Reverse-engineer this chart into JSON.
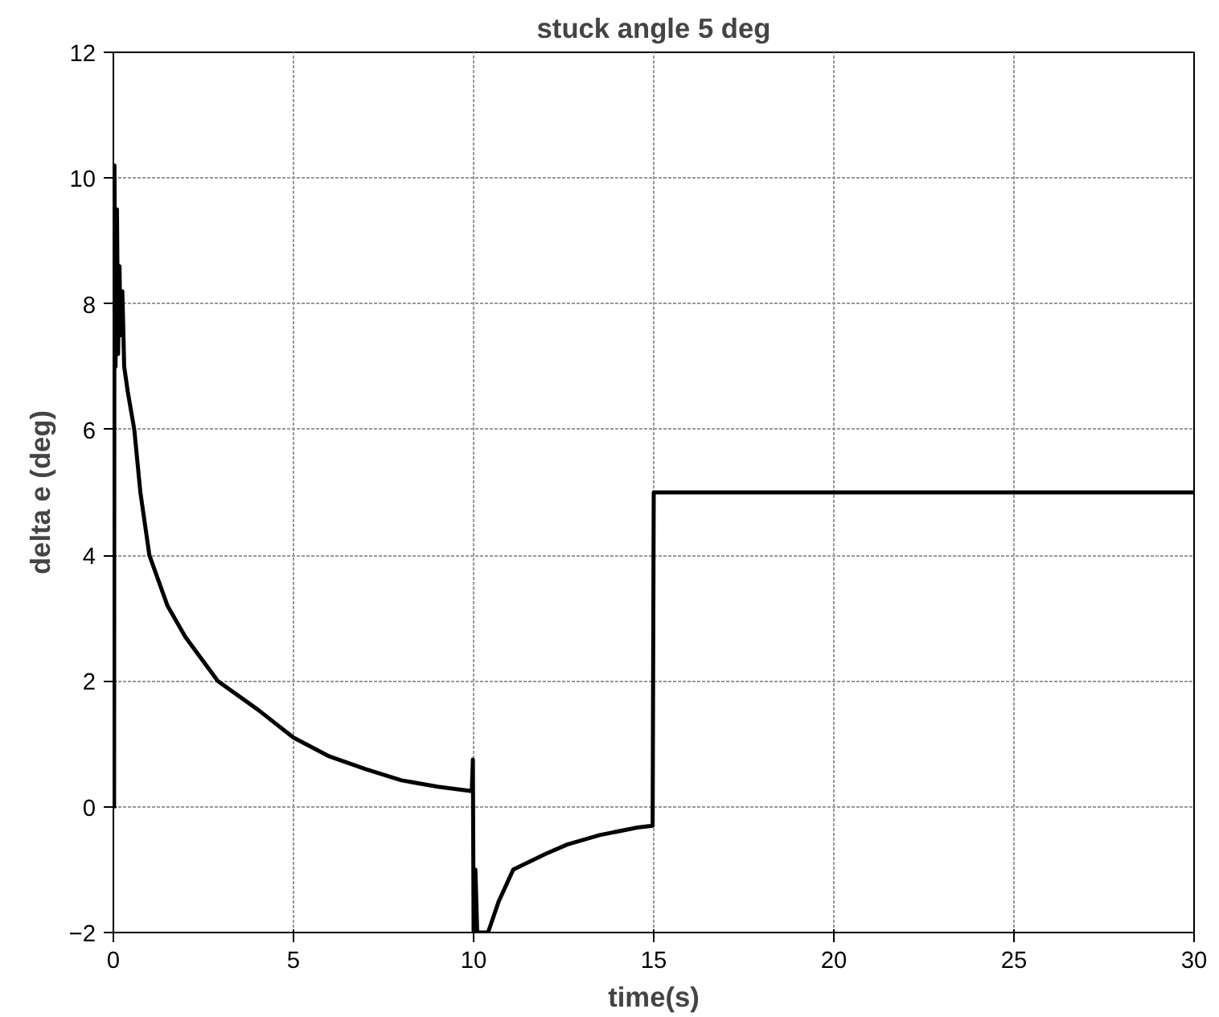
{
  "chart_data": {
    "type": "line",
    "title": "stuck angle 5 deg",
    "xlabel": "time(s)",
    "ylabel": "delta e (deg)",
    "series": [
      {
        "color": "#000000",
        "x": [
          0,
          0.02,
          0.03,
          0.06,
          0.1,
          0.13,
          0.17,
          0.2,
          0.25,
          0.3,
          0.4,
          0.58,
          0.75,
          1.0,
          1.5,
          2,
          2.9,
          4,
          5,
          6,
          7,
          8,
          9,
          9.95,
          9.98,
          10.0,
          10.05,
          10.1,
          10.4,
          10.7,
          11.1,
          12,
          12.6,
          13.5,
          14.55,
          14.97,
          15,
          30
        ],
        "values": [
          0,
          0,
          10.2,
          7.0,
          9.5,
          7.2,
          8.6,
          7.5,
          8.2,
          7.0,
          6.6,
          6,
          5,
          4,
          3.2,
          2.7,
          2,
          1.55,
          1.1,
          0.8,
          0.6,
          0.42,
          0.32,
          0.25,
          0.75,
          -2.0,
          -1.0,
          -2,
          -2,
          -1.5,
          -1.0,
          -0.75,
          -0.6,
          -0.45,
          -0.33,
          -0.3,
          5,
          5
        ]
      }
    ],
    "xlim": [
      0,
      30
    ],
    "xticks": [
      0,
      5,
      10,
      15,
      20,
      25,
      30
    ],
    "ylim": [
      -2,
      12
    ],
    "yticks": [
      -2,
      0,
      2,
      4,
      6,
      8,
      10,
      12
    ],
    "grid": true,
    "line_style": "solid"
  }
}
